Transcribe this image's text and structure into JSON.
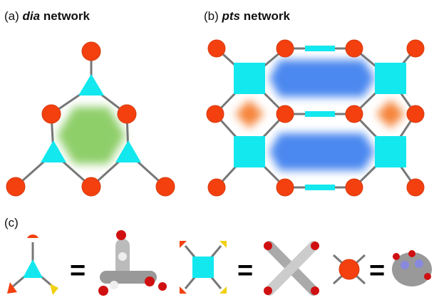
{
  "panels": [
    {
      "label": "(a)",
      "name": "dia",
      "suffix": "network"
    },
    {
      "label": "(b)",
      "name": "pts",
      "suffix": "network"
    },
    {
      "label": "(c)"
    }
  ],
  "equals": [
    "=",
    "=",
    "="
  ]
}
